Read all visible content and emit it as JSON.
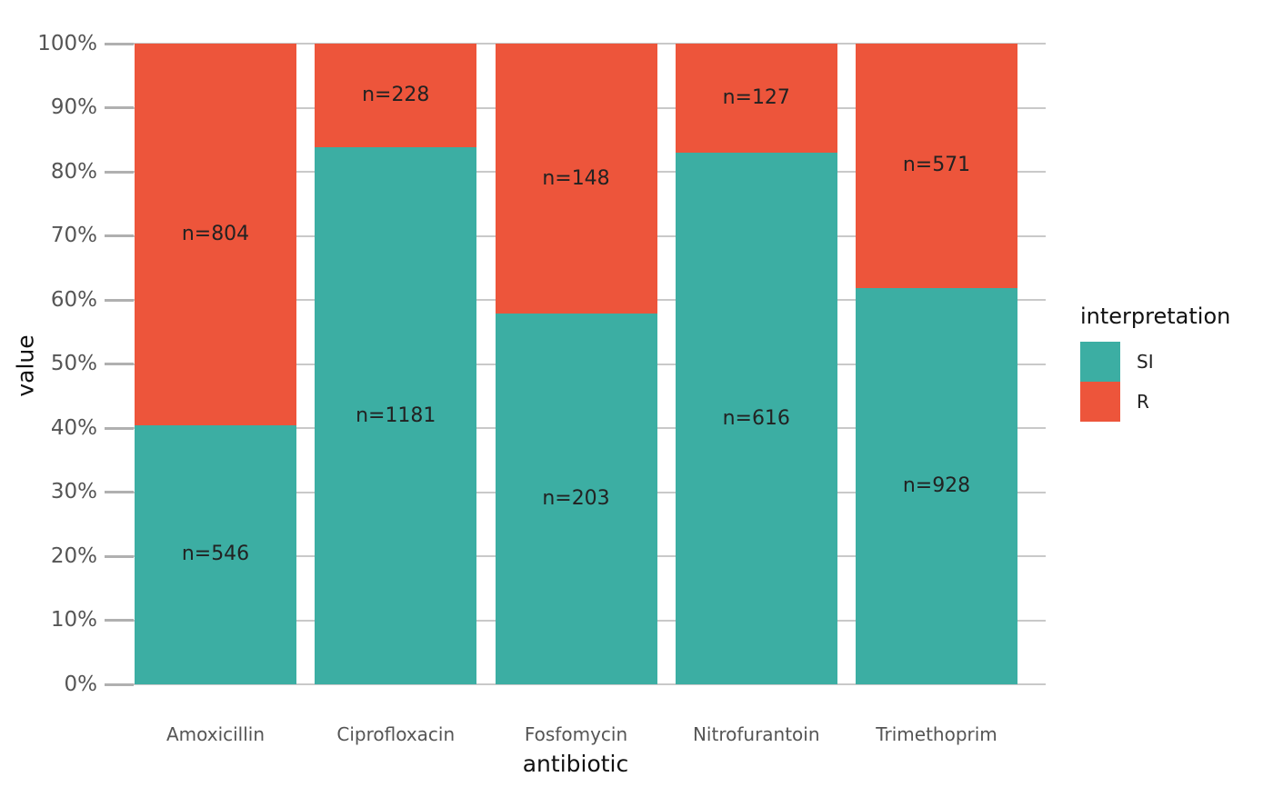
{
  "chart_data": {
    "type": "bar",
    "variant": "stacked-percent",
    "title": "",
    "xlabel": "antibiotic",
    "ylabel": "value",
    "categories": [
      "Amoxicillin",
      "Ciprofloxacin",
      "Fosfomycin",
      "Nitrofurantoin",
      "Trimethoprim"
    ],
    "series": [
      {
        "name": "SI",
        "color": "#3CAEA3",
        "counts": [
          546,
          1181,
          203,
          616,
          928
        ],
        "labels": [
          "n=546",
          "n=1181",
          "n=203",
          "n=616",
          "n=928"
        ],
        "pct": [
          40.44,
          83.82,
          57.83,
          82.91,
          61.91
        ]
      },
      {
        "name": "R",
        "color": "#ED553B",
        "counts": [
          804,
          228,
          148,
          127,
          571
        ],
        "labels": [
          "n=804",
          "n=228",
          "n=148",
          "n=127",
          "n=571"
        ],
        "pct": [
          59.56,
          16.18,
          42.17,
          17.09,
          38.09
        ]
      }
    ],
    "y_ticks": [
      "0%",
      "10%",
      "20%",
      "30%",
      "40%",
      "50%",
      "60%",
      "70%",
      "80%",
      "90%",
      "100%"
    ],
    "ylim": [
      0,
      100
    ],
    "grid": true,
    "legend": {
      "title": "interpretation",
      "position": "right",
      "entries": [
        {
          "label": "SI",
          "color": "#3CAEA3"
        },
        {
          "label": "R",
          "color": "#ED553B"
        }
      ]
    },
    "colors": {
      "gridline": "#c9c9c9",
      "tick_text": "#555555",
      "axis_title_text": "#111111",
      "bar_label_text": "#222222"
    }
  }
}
